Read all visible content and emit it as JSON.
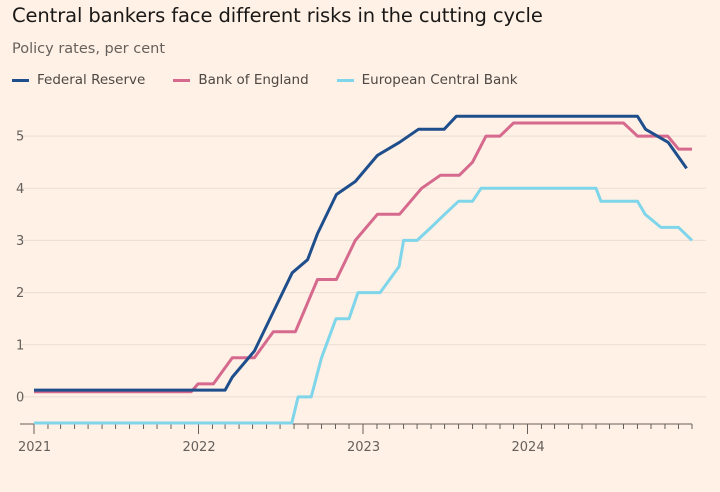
{
  "chart_data": {
    "type": "line",
    "title": "Central bankers face different risks in the cutting cycle",
    "subtitle": "Policy rates, per cent",
    "xlabel": "",
    "ylabel": "",
    "xlim": [
      "2021-01-01",
      "2024-12-31"
    ],
    "ylim": [
      -0.5,
      5.5
    ],
    "y_ticks": [
      "0",
      "1",
      "2",
      "3",
      "4",
      "5"
    ],
    "x_ticks": [
      "2021",
      "2022",
      "2023",
      "2024"
    ],
    "legend_position": "top",
    "grid": true,
    "series": [
      {
        "name": "Federal Reserve",
        "color": "#1F4E8C",
        "points": [
          [
            "2021-01-01",
            0.13
          ],
          [
            "2022-03-01",
            0.13
          ],
          [
            "2022-03-17",
            0.38
          ],
          [
            "2022-05-05",
            0.88
          ],
          [
            "2022-06-16",
            1.63
          ],
          [
            "2022-07-28",
            2.38
          ],
          [
            "2022-08-31",
            2.63
          ],
          [
            "2022-09-22",
            3.13
          ],
          [
            "2022-11-03",
            3.88
          ],
          [
            "2022-12-15",
            4.13
          ],
          [
            "2023-02-02",
            4.63
          ],
          [
            "2023-03-23",
            4.88
          ],
          [
            "2023-05-04",
            5.13
          ],
          [
            "2023-06-30",
            5.13
          ],
          [
            "2023-07-27",
            5.38
          ],
          [
            "2024-09-01",
            5.38
          ],
          [
            "2024-09-19",
            5.13
          ],
          [
            "2024-11-08",
            4.88
          ],
          [
            "2024-12-19",
            4.38
          ]
        ]
      },
      {
        "name": "Bank of England",
        "color": "#D66A8E",
        "points": [
          [
            "2021-01-01",
            0.1
          ],
          [
            "2021-12-16",
            0.1
          ],
          [
            "2021-12-31",
            0.25
          ],
          [
            "2022-02-03",
            0.25
          ],
          [
            "2022-03-17",
            0.75
          ],
          [
            "2022-05-05",
            0.75
          ],
          [
            "2022-06-16",
            1.25
          ],
          [
            "2022-08-04",
            1.25
          ],
          [
            "2022-09-22",
            2.25
          ],
          [
            "2022-11-03",
            2.25
          ],
          [
            "2022-12-15",
            3.0
          ],
          [
            "2023-02-02",
            3.5
          ],
          [
            "2023-03-23",
            3.5
          ],
          [
            "2023-05-11",
            4.0
          ],
          [
            "2023-06-22",
            4.25
          ],
          [
            "2023-08-03",
            4.25
          ],
          [
            "2023-09-01",
            4.5
          ],
          [
            "2023-10-01",
            5.0
          ],
          [
            "2023-11-01",
            5.0
          ],
          [
            "2023-12-01",
            5.25
          ],
          [
            "2024-08-01",
            5.25
          ],
          [
            "2024-09-01",
            5.0
          ],
          [
            "2024-11-07",
            5.0
          ],
          [
            "2024-12-01",
            4.75
          ],
          [
            "2024-12-31",
            4.75
          ]
        ]
      },
      {
        "name": "European Central Bank",
        "color": "#7FD5EA",
        "points": [
          [
            "2021-01-01",
            -0.5
          ],
          [
            "2022-07-27",
            -0.5
          ],
          [
            "2022-08-10",
            0.0
          ],
          [
            "2022-09-08",
            0.0
          ],
          [
            "2022-10-01",
            0.75
          ],
          [
            "2022-11-02",
            1.5
          ],
          [
            "2022-12-01",
            1.5
          ],
          [
            "2022-12-21",
            2.0
          ],
          [
            "2023-02-08",
            2.0
          ],
          [
            "2023-03-22",
            2.5
          ],
          [
            "2023-04-01",
            3.0
          ],
          [
            "2023-05-01",
            3.0
          ],
          [
            "2023-06-01",
            3.25
          ],
          [
            "2023-07-01",
            3.5
          ],
          [
            "2023-08-01",
            3.75
          ],
          [
            "2023-09-01",
            3.75
          ],
          [
            "2023-09-20",
            4.0
          ],
          [
            "2024-06-01",
            4.0
          ],
          [
            "2024-06-12",
            3.75
          ],
          [
            "2024-09-01",
            3.75
          ],
          [
            "2024-09-18",
            3.5
          ],
          [
            "2024-10-23",
            3.25
          ],
          [
            "2024-12-01",
            3.25
          ],
          [
            "2024-12-31",
            3.0
          ]
        ]
      }
    ]
  }
}
